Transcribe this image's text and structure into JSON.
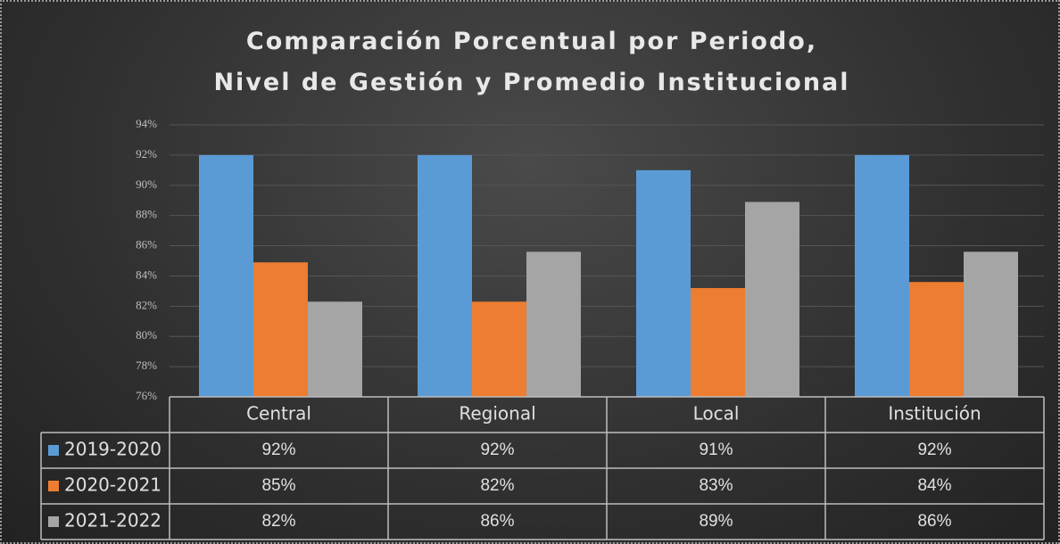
{
  "chart_data": {
    "type": "bar",
    "title": "Comparación Porcentual por Periodo,\nNivel de Gestión y Promedio Institucional",
    "categories": [
      "Central",
      "Regional",
      "Local",
      "Institución"
    ],
    "series": [
      {
        "name": "2019-2020",
        "color": "#5b9bd5",
        "values": [
          92,
          92,
          91,
          92
        ],
        "value_labels": [
          "92%",
          "92%",
          "91%",
          "92%"
        ]
      },
      {
        "name": "2020-2021",
        "color": "#ed7d31",
        "values": [
          84.9,
          82.3,
          83.2,
          83.6
        ],
        "value_labels": [
          "85%",
          "82%",
          "83%",
          "84%"
        ]
      },
      {
        "name": "2021-2022",
        "color": "#a5a5a5",
        "values": [
          82.3,
          85.6,
          88.9,
          85.6
        ],
        "value_labels": [
          "82%",
          "86%",
          "89%",
          "86%"
        ]
      }
    ],
    "ylim": [
      76,
      94
    ],
    "yticks": [
      {
        "value": 76,
        "label": "76%"
      },
      {
        "value": 78,
        "label": "78%"
      },
      {
        "value": 80,
        "label": "80%"
      },
      {
        "value": 82,
        "label": "82%"
      },
      {
        "value": 84,
        "label": "84%"
      },
      {
        "value": 86,
        "label": "86%"
      },
      {
        "value": 88,
        "label": "88%"
      },
      {
        "value": 90,
        "label": "90%"
      },
      {
        "value": 92,
        "label": "92%"
      },
      {
        "value": 94,
        "label": "94%"
      }
    ],
    "grid": true
  }
}
